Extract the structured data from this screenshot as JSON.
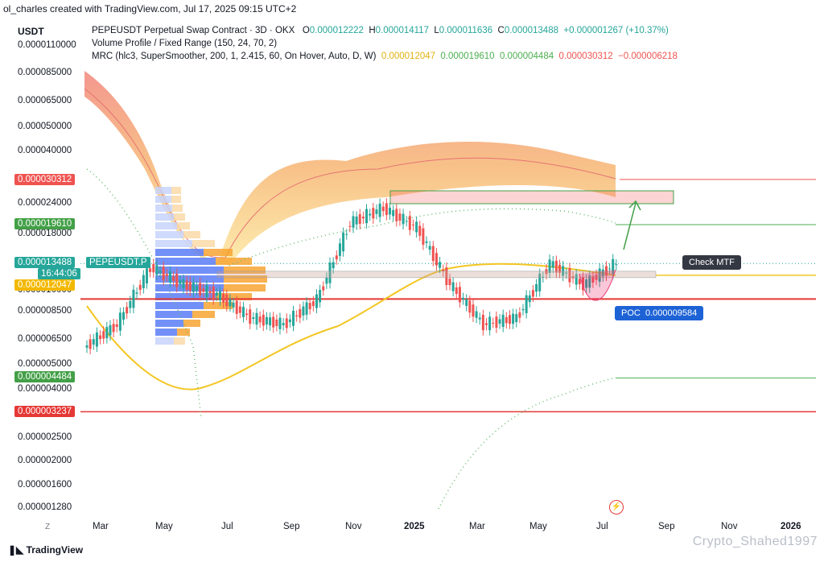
{
  "header": {
    "author_line": "ol_charles created with TradingView.com, Jul 17, 2025 09:15 UTC+2",
    "axis_unit": "USDT"
  },
  "legend": {
    "symbol": "PEPEUSDT Perpetual Swap Contract · 3D · OKX",
    "o_label": "O",
    "o_value": "0.000012222",
    "h_label": "H",
    "h_value": "0.000014117",
    "l_label": "L",
    "l_value": "0.000011636",
    "c_label": "C",
    "c_value": "0.000013488",
    "change": "+0.000001267 (+10.37%)",
    "vp": "Volume Profile / Fixed Range (150, 24, 70, 2)",
    "mrc": "MRC (hlc3, SuperSmoother, 200, 1, 2.415, 60, On Hover, Auto, D, W)",
    "mrc_values": [
      "0.000012047",
      "0.000019610",
      "0.000004484",
      "0.000030312",
      "−0.000006218"
    ]
  },
  "colors": {
    "up": "#26a69a",
    "down": "#ef5350",
    "mean": "#f3c623",
    "upper_band": "#4caf50",
    "red_level": "#e53935",
    "poc": "#1e63d6",
    "profile_blue": "#5b7cf7",
    "profile_orange": "#f7a533"
  },
  "y_axis_labels": [
    "0.0000110000",
    "0.000085000",
    "0.000065000",
    "0.000050000",
    "0.000040000",
    "0.000024000",
    "0.000018000",
    "0.000010000",
    "0.000008500",
    "0.000006500",
    "0.000005000",
    "0.000004000",
    "0.000002500",
    "0.000002000",
    "0.000001600",
    "0.000001280"
  ],
  "price_tags": {
    "top_band": "0.000030312",
    "upper": "0.000019610",
    "current_price": "0.000013488",
    "symbol_short": "PEPEUSDT.P",
    "countdown": "16:44:06",
    "mean": "0.000012047",
    "lower": "0.000004484",
    "support": "0.000003237"
  },
  "x_axis_labels": [
    "Mar",
    "May",
    "Jul",
    "Sep",
    "Nov",
    "2025",
    "Mar",
    "May",
    "Jul",
    "Sep",
    "Nov",
    "2026"
  ],
  "annotations": {
    "check_mtf": "Check MTF",
    "poc_label": "POC",
    "poc_value": "0.000009584"
  },
  "footer": {
    "brand": "TradingView",
    "watermark": "Crypto_Shahed1997",
    "zoom_button": "Z"
  },
  "chart_data": {
    "type": "line",
    "title": "PEPEUSDT Perpetual Swap Contract · 3D · OKX",
    "xlabel": "",
    "ylabel": "USDT",
    "scale": "log",
    "ylim": [
      1.2e-06,
      0.000115
    ],
    "x": [
      "2024-03",
      "2024-04",
      "2024-05",
      "2024-06",
      "2024-07",
      "2024-08",
      "2024-09",
      "2024-10",
      "2024-11",
      "2024-12",
      "2025-01",
      "2025-02",
      "2025-03",
      "2025-04",
      "2025-05",
      "2025-06",
      "2025-07"
    ],
    "series": [
      {
        "name": "PEPEUSDT.P",
        "values": [
          6e-06,
          7.5e-06,
          1.3e-05,
          1.1e-05,
          1e-05,
          8e-06,
          7.5e-06,
          9.5e-06,
          2e-05,
          2.3e-05,
          1.9e-05,
          1.1e-05,
          7.5e-06,
          8e-06,
          1.35e-05,
          1.1e-05,
          1.35e-05
        ]
      }
    ],
    "levels": {
      "poc": 9.584e-06,
      "mean": 1.2047e-05,
      "upper": 1.961e-05,
      "top_band": 3.0312e-05,
      "lower": 4.484e-06,
      "support": 3.237e-06,
      "current": 1.3488e-05
    },
    "grid": false,
    "legend": "top-left"
  }
}
